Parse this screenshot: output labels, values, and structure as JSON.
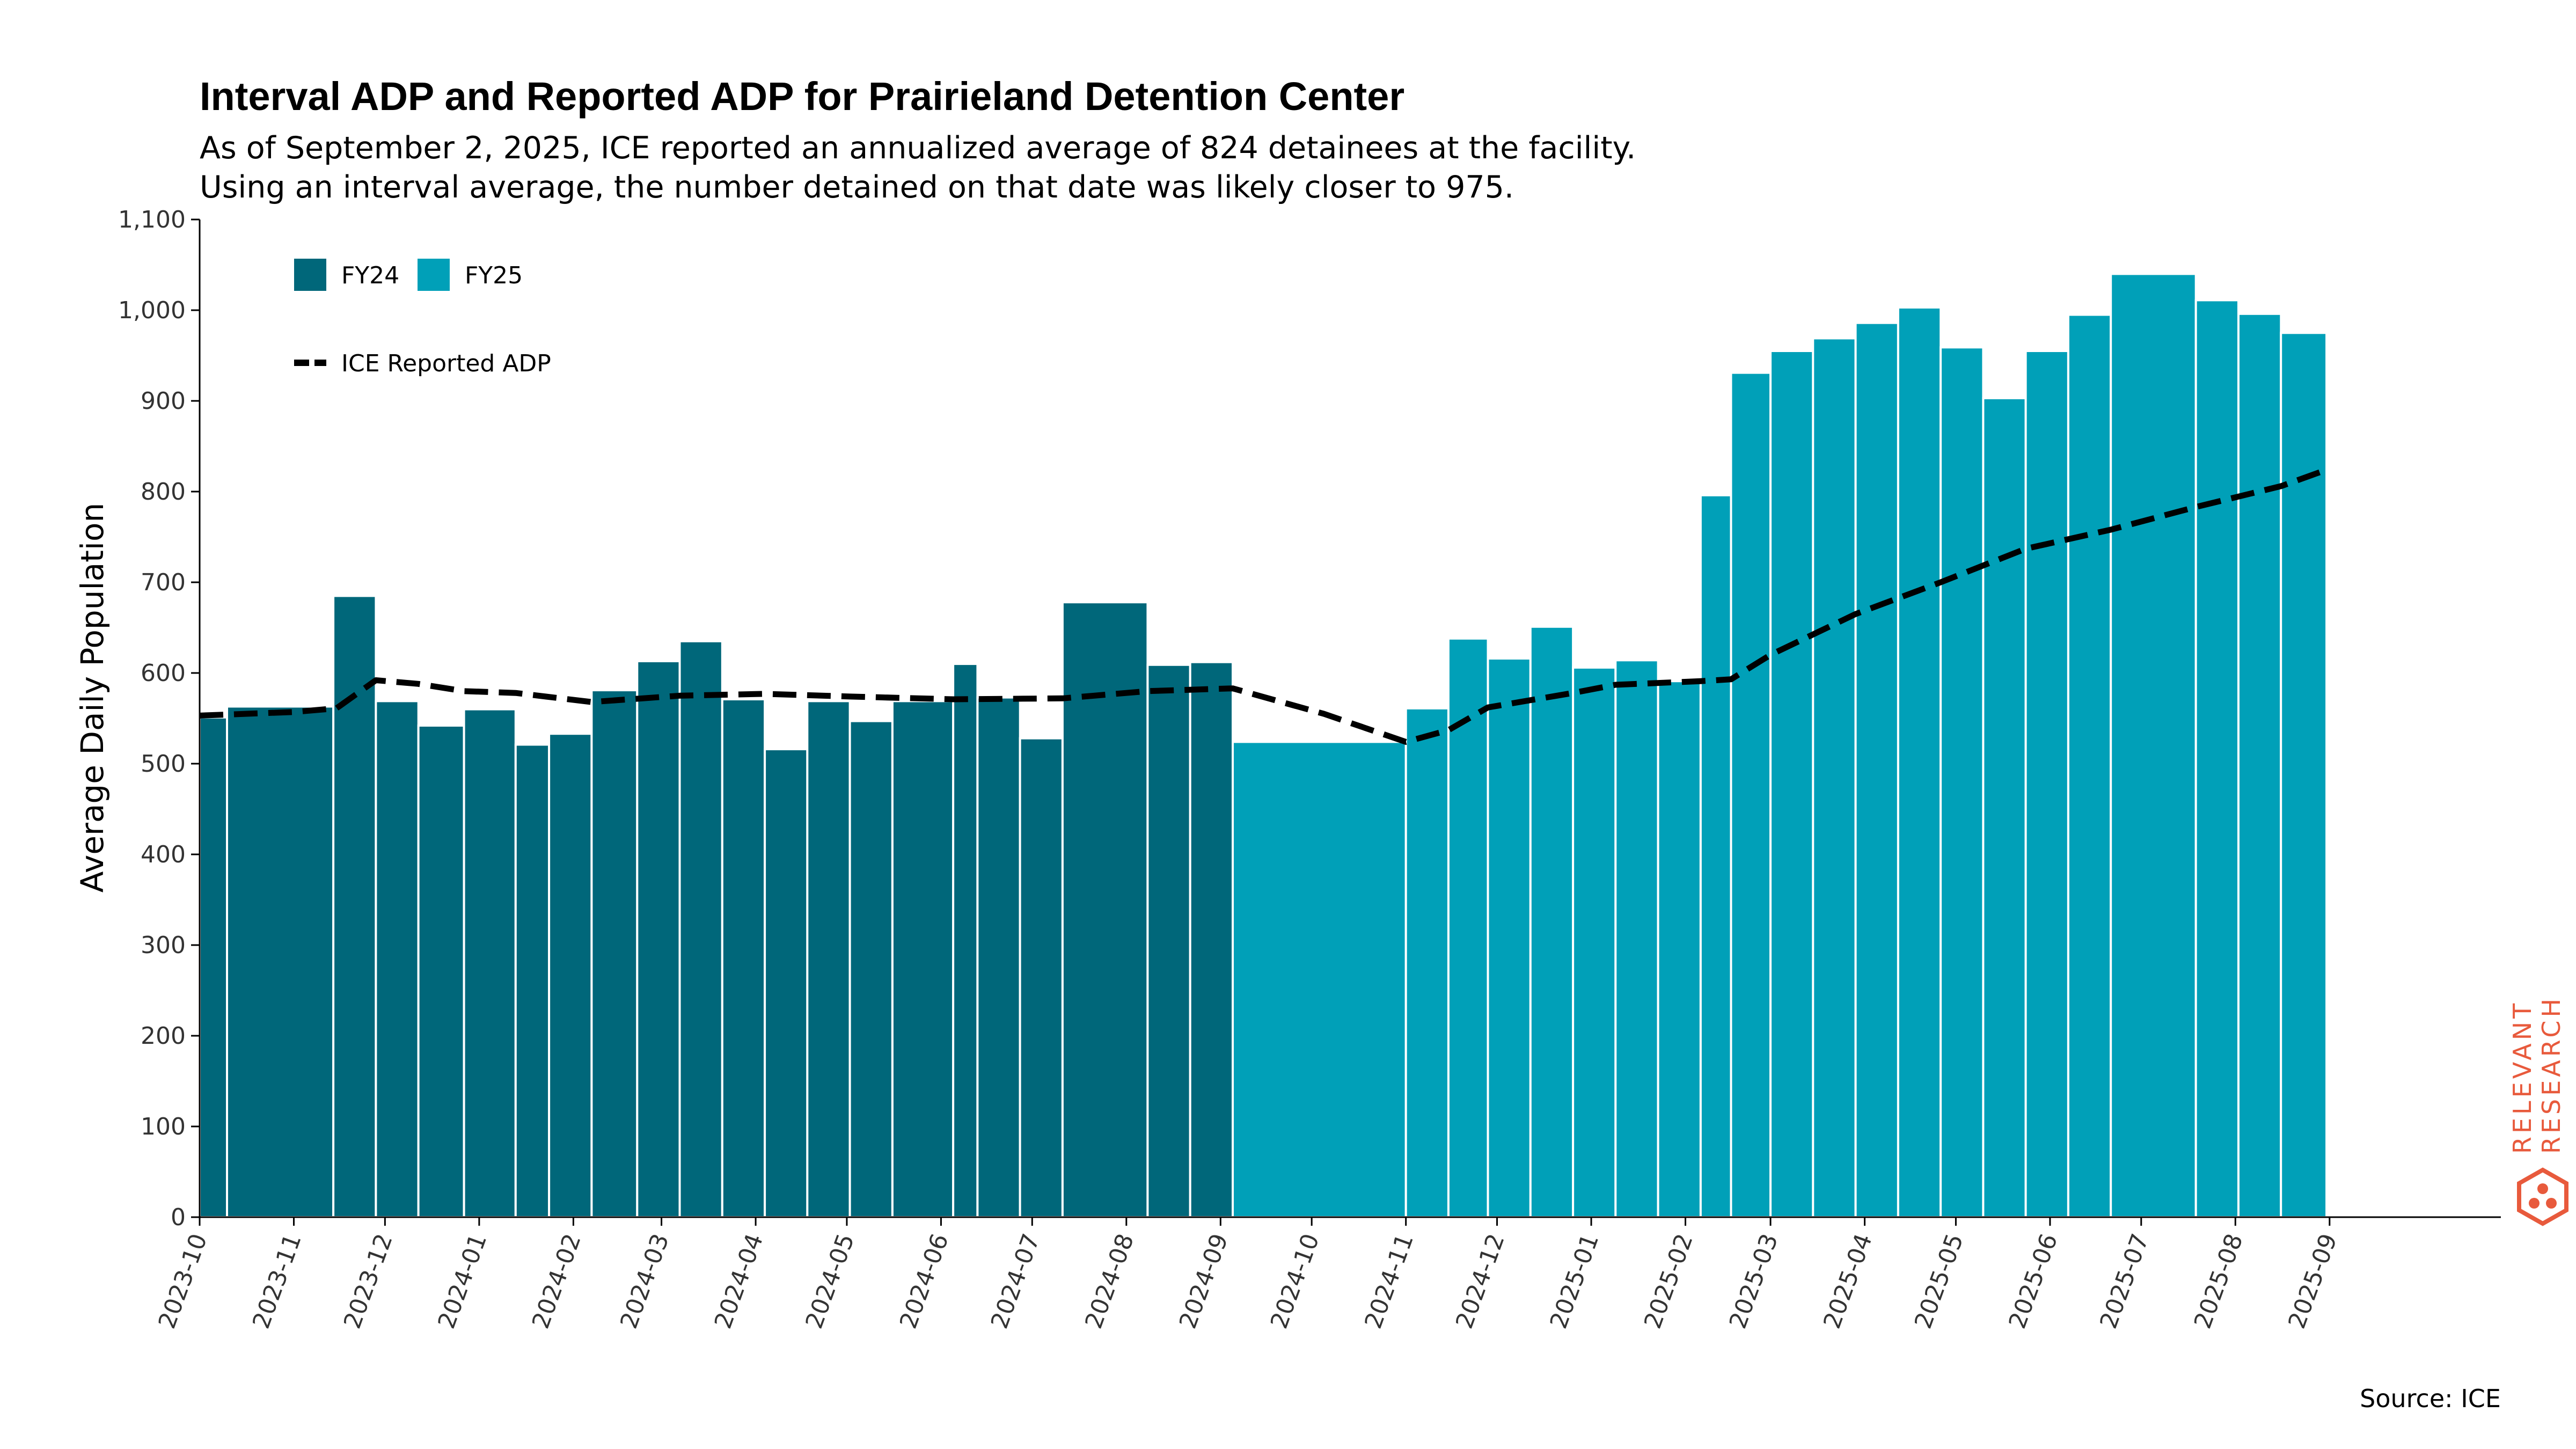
{
  "colors": {
    "fy24": "#00677a",
    "fy25": "#00a0b8",
    "line": "#000000",
    "brand": "#e85a3c"
  },
  "chart_data": {
    "type": "bar",
    "title": "Interval ADP and Reported ADP for Prairieland Detention Center",
    "subtitle_lines": [
      "As of September 2, 2025, ICE reported an annualized average of 824 detainees at the facility.",
      "Using an interval average, the number detained on that date was likely closer to 975."
    ],
    "ylabel": "Average Daily Population",
    "xlabel": "",
    "ylim": [
      0,
      1100
    ],
    "yticks": [
      0,
      100,
      200,
      300,
      400,
      500,
      600,
      700,
      800,
      900,
      1000,
      1100
    ],
    "ytick_labels": [
      "0",
      "100",
      "200",
      "300",
      "400",
      "500",
      "600",
      "700",
      "800",
      "900",
      "1,000",
      "1,100"
    ],
    "xlim": [
      "2023-10-01",
      "2025-09-30"
    ],
    "xtick_labels": [
      "2023-10",
      "2023-11",
      "2023-12",
      "2024-01",
      "2024-02",
      "2024-03",
      "2024-04",
      "2024-05",
      "2024-06",
      "2024-07",
      "2024-08",
      "2024-09",
      "2024-10",
      "2024-11",
      "2024-12",
      "2025-01",
      "2025-02",
      "2025-03",
      "2025-04",
      "2025-05",
      "2025-06",
      "2025-07",
      "2025-08",
      "2025-09"
    ],
    "legend": [
      {
        "label": "FY24",
        "kind": "bar",
        "series": "FY24"
      },
      {
        "label": "FY25",
        "kind": "bar",
        "series": "FY25"
      },
      {
        "label": "ICE Reported ADP",
        "kind": "dashed-line"
      }
    ],
    "legend_position": "top-left",
    "bars": [
      {
        "start": "2023-10-01",
        "end": "2023-10-10",
        "value": 551,
        "series": "FY24"
      },
      {
        "start": "2023-10-10",
        "end": "2023-11-14",
        "value": 563,
        "series": "FY24"
      },
      {
        "start": "2023-11-14",
        "end": "2023-11-28",
        "value": 685,
        "series": "FY24"
      },
      {
        "start": "2023-11-28",
        "end": "2023-12-12",
        "value": 569,
        "series": "FY24"
      },
      {
        "start": "2023-12-12",
        "end": "2023-12-27",
        "value": 542,
        "series": "FY24"
      },
      {
        "start": "2023-12-27",
        "end": "2024-01-13",
        "value": 560,
        "series": "FY24"
      },
      {
        "start": "2024-01-13",
        "end": "2024-01-24",
        "value": 521,
        "series": "FY24"
      },
      {
        "start": "2024-01-24",
        "end": "2024-02-07",
        "value": 533,
        "series": "FY24"
      },
      {
        "start": "2024-02-07",
        "end": "2024-02-22",
        "value": 581,
        "series": "FY24"
      },
      {
        "start": "2024-02-22",
        "end": "2024-03-07",
        "value": 613,
        "series": "FY24"
      },
      {
        "start": "2024-03-07",
        "end": "2024-03-21",
        "value": 635,
        "series": "FY24"
      },
      {
        "start": "2024-03-21",
        "end": "2024-04-04",
        "value": 571,
        "series": "FY24"
      },
      {
        "start": "2024-04-04",
        "end": "2024-04-18",
        "value": 516,
        "series": "FY24"
      },
      {
        "start": "2024-04-18",
        "end": "2024-05-02",
        "value": 569,
        "series": "FY24"
      },
      {
        "start": "2024-05-02",
        "end": "2024-05-16",
        "value": 547,
        "series": "FY24"
      },
      {
        "start": "2024-05-16",
        "end": "2024-06-05",
        "value": 569,
        "series": "FY24"
      },
      {
        "start": "2024-06-05",
        "end": "2024-06-13",
        "value": 610,
        "series": "FY24"
      },
      {
        "start": "2024-06-13",
        "end": "2024-06-27",
        "value": 573,
        "series": "FY24"
      },
      {
        "start": "2024-06-27",
        "end": "2024-07-11",
        "value": 528,
        "series": "FY24"
      },
      {
        "start": "2024-07-11",
        "end": "2024-08-08",
        "value": 678,
        "series": "FY24"
      },
      {
        "start": "2024-08-08",
        "end": "2024-08-22",
        "value": 609,
        "series": "FY24"
      },
      {
        "start": "2024-08-22",
        "end": "2024-09-05",
        "value": 612,
        "series": "FY24"
      },
      {
        "start": "2024-09-05",
        "end": "2024-11-01",
        "value": 524,
        "series": "FY25"
      },
      {
        "start": "2024-11-01",
        "end": "2024-11-15",
        "value": 561,
        "series": "FY25"
      },
      {
        "start": "2024-11-15",
        "end": "2024-11-28",
        "value": 638,
        "series": "FY25"
      },
      {
        "start": "2024-11-28",
        "end": "2024-12-12",
        "value": 616,
        "series": "FY25"
      },
      {
        "start": "2024-12-12",
        "end": "2024-12-26",
        "value": 651,
        "series": "FY25"
      },
      {
        "start": "2024-12-26",
        "end": "2025-01-09",
        "value": 606,
        "series": "FY25"
      },
      {
        "start": "2025-01-09",
        "end": "2025-01-23",
        "value": 614,
        "series": "FY25"
      },
      {
        "start": "2025-01-23",
        "end": "2025-02-06",
        "value": 591,
        "series": "FY25"
      },
      {
        "start": "2025-02-06",
        "end": "2025-02-16",
        "value": 796,
        "series": "FY25"
      },
      {
        "start": "2025-02-16",
        "end": "2025-03-01",
        "value": 931,
        "series": "FY25"
      },
      {
        "start": "2025-03-01",
        "end": "2025-03-15",
        "value": 955,
        "series": "FY25"
      },
      {
        "start": "2025-03-15",
        "end": "2025-03-29",
        "value": 969,
        "series": "FY25"
      },
      {
        "start": "2025-03-29",
        "end": "2025-04-12",
        "value": 986,
        "series": "FY25"
      },
      {
        "start": "2025-04-12",
        "end": "2025-04-26",
        "value": 1003,
        "series": "FY25"
      },
      {
        "start": "2025-04-26",
        "end": "2025-05-10",
        "value": 959,
        "series": "FY25"
      },
      {
        "start": "2025-05-10",
        "end": "2025-05-24",
        "value": 903,
        "series": "FY25"
      },
      {
        "start": "2025-05-24",
        "end": "2025-06-07",
        "value": 955,
        "series": "FY25"
      },
      {
        "start": "2025-06-07",
        "end": "2025-06-21",
        "value": 995,
        "series": "FY25"
      },
      {
        "start": "2025-06-21",
        "end": "2025-07-19",
        "value": 1040,
        "series": "FY25"
      },
      {
        "start": "2025-07-19",
        "end": "2025-08-02",
        "value": 1011,
        "series": "FY25"
      },
      {
        "start": "2025-08-02",
        "end": "2025-08-16",
        "value": 996,
        "series": "FY25"
      },
      {
        "start": "2025-08-16",
        "end": "2025-08-31",
        "value": 975,
        "series": "FY25"
      }
    ],
    "reported_adp": [
      {
        "date": "2023-10-01",
        "value": 553
      },
      {
        "date": "2023-11-01",
        "value": 557
      },
      {
        "date": "2023-11-15",
        "value": 561
      },
      {
        "date": "2023-11-28",
        "value": 592
      },
      {
        "date": "2023-12-12",
        "value": 588
      },
      {
        "date": "2023-12-27",
        "value": 580
      },
      {
        "date": "2024-01-13",
        "value": 578
      },
      {
        "date": "2024-02-07",
        "value": 568
      },
      {
        "date": "2024-03-07",
        "value": 575
      },
      {
        "date": "2024-04-04",
        "value": 577
      },
      {
        "date": "2024-05-02",
        "value": 574
      },
      {
        "date": "2024-06-05",
        "value": 571
      },
      {
        "date": "2024-07-11",
        "value": 572
      },
      {
        "date": "2024-08-08",
        "value": 580
      },
      {
        "date": "2024-09-05",
        "value": 583
      },
      {
        "date": "2024-10-05",
        "value": 555
      },
      {
        "date": "2024-11-01",
        "value": 524
      },
      {
        "date": "2024-11-15",
        "value": 537
      },
      {
        "date": "2024-11-28",
        "value": 562
      },
      {
        "date": "2024-12-26",
        "value": 578
      },
      {
        "date": "2025-01-09",
        "value": 587
      },
      {
        "date": "2025-02-06",
        "value": 591
      },
      {
        "date": "2025-02-16",
        "value": 593
      },
      {
        "date": "2025-03-01",
        "value": 620
      },
      {
        "date": "2025-03-29",
        "value": 665
      },
      {
        "date": "2025-04-26",
        "value": 700
      },
      {
        "date": "2025-05-24",
        "value": 737
      },
      {
        "date": "2025-06-21",
        "value": 758
      },
      {
        "date": "2025-07-19",
        "value": 783
      },
      {
        "date": "2025-08-16",
        "value": 806
      },
      {
        "date": "2025-08-31",
        "value": 824
      }
    ]
  },
  "source": "Source: ICE",
  "brand": {
    "line1": "RELEVANT",
    "line2": "RESEARCH"
  }
}
